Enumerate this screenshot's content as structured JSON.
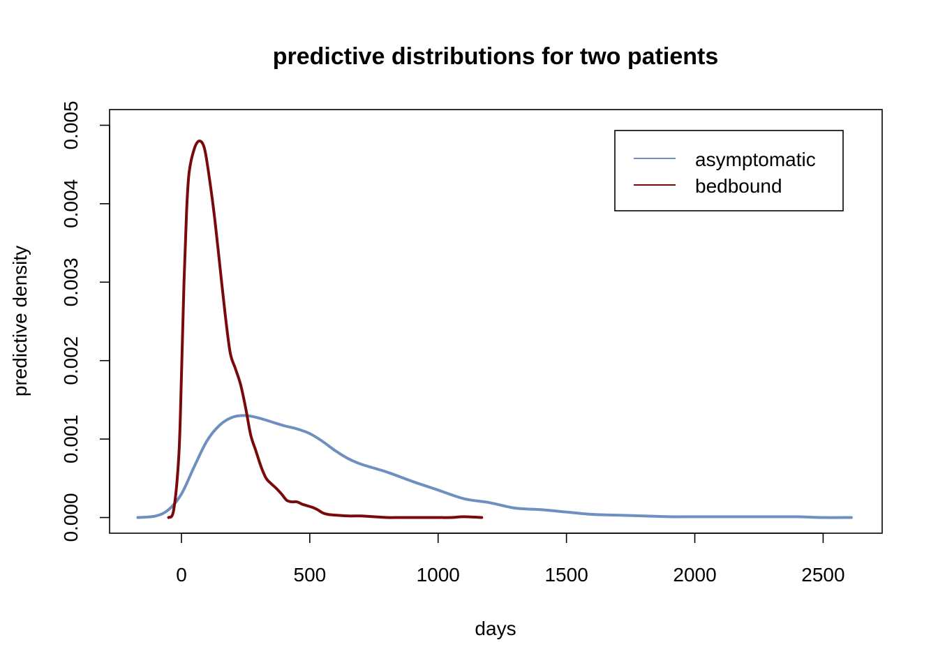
{
  "chart_data": {
    "type": "line",
    "title": "predictive distributions for two patients",
    "xlabel": "days",
    "ylabel": "predictive density",
    "xlim": [
      -280,
      2730
    ],
    "ylim": [
      -0.0002,
      0.0052
    ],
    "x_ticks": [
      0,
      500,
      1000,
      1500,
      2000,
      2500
    ],
    "x_tick_labels": [
      "0",
      "500",
      "1000",
      "1500",
      "2000",
      "2500"
    ],
    "y_ticks": [
      0.0,
      0.001,
      0.002,
      0.003,
      0.004,
      0.005
    ],
    "y_tick_labels": [
      "0.000",
      "0.001",
      "0.002",
      "0.003",
      "0.004",
      "0.005"
    ],
    "grid": false,
    "legend_position": "top-right",
    "series": [
      {
        "name": "asymptomatic",
        "color": "#6e8fbf",
        "x": [
          -170,
          -100,
          -50,
          0,
          50,
          100,
          150,
          200,
          250,
          300,
          350,
          400,
          450,
          500,
          550,
          600,
          650,
          700,
          800,
          900,
          1000,
          1100,
          1200,
          1300,
          1400,
          1500,
          1600,
          1700,
          1800,
          1900,
          2000,
          2100,
          2200,
          2300,
          2400,
          2500,
          2610
        ],
        "y": [
          0.0,
          2e-05,
          0.0001,
          0.0003,
          0.00065,
          0.00098,
          0.00118,
          0.00128,
          0.0013,
          0.00127,
          0.00122,
          0.00117,
          0.00113,
          0.00107,
          0.00097,
          0.00085,
          0.00075,
          0.00068,
          0.00058,
          0.00046,
          0.00035,
          0.00024,
          0.00019,
          0.00012,
          0.0001,
          7e-05,
          4e-05,
          3e-05,
          2e-05,
          1e-05,
          1e-05,
          1e-05,
          1e-05,
          1e-05,
          1e-05,
          0.0,
          0.0
        ]
      },
      {
        "name": "bedbound",
        "color": "#7a0a0a",
        "x": [
          -50,
          -30,
          -10,
          0,
          10,
          20,
          30,
          50,
          70,
          90,
          110,
          130,
          150,
          170,
          190,
          210,
          230,
          250,
          270,
          290,
          310,
          330,
          350,
          370,
          390,
          410,
          430,
          450,
          470,
          490,
          510,
          530,
          550,
          570,
          600,
          650,
          700,
          750,
          800,
          850,
          900,
          950,
          1000,
          1050,
          1100,
          1170
        ],
        "y": [
          0.0,
          0.0001,
          0.0008,
          0.0018,
          0.003,
          0.0039,
          0.0044,
          0.0047,
          0.0048,
          0.0047,
          0.0043,
          0.0038,
          0.0032,
          0.0026,
          0.0021,
          0.0019,
          0.0017,
          0.0014,
          0.00105,
          0.00085,
          0.00065,
          0.0005,
          0.00043,
          0.00037,
          0.0003,
          0.00022,
          0.0002,
          0.0002,
          0.00017,
          0.00015,
          0.00013,
          0.0001,
          6e-05,
          4e-05,
          3e-05,
          2e-05,
          2e-05,
          1e-05,
          0.0,
          0.0,
          0.0,
          0.0,
          0.0,
          0.0,
          1e-05,
          0.0
        ]
      }
    ]
  }
}
